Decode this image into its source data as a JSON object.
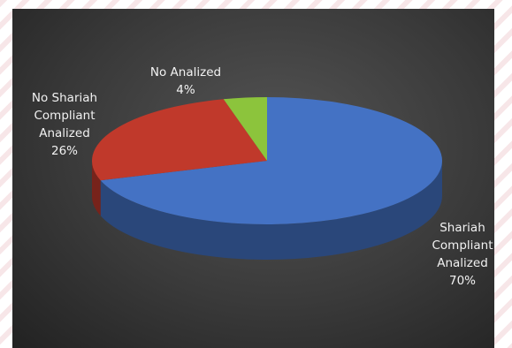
{
  "chart_data": {
    "type": "pie",
    "style": "3d",
    "slices": [
      {
        "name": "Shariah Compliant Analized",
        "label_lines": [
          "Shariah",
          "Compliant",
          "Analized"
        ],
        "value": 70,
        "value_label": "70%",
        "color": "#4472c4"
      },
      {
        "name": "No Shariah Compliant Analized",
        "label_lines": [
          "No Shariah",
          "Compliant",
          "Analized"
        ],
        "value": 26,
        "value_label": "26%",
        "color": "#c0392b"
      },
      {
        "name": "No Analized",
        "label_lines": [
          "No Analized"
        ],
        "value": 4,
        "value_label": "4%",
        "color": "#8cc43c"
      }
    ],
    "background": "#3a3a3a"
  }
}
